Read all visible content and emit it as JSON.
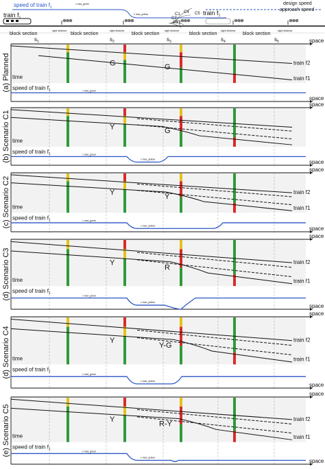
{
  "legend": {
    "speed_label": "speed of train f",
    "speed_sub": "1",
    "design_speed": "design speed",
    "approach_speed": "approach speed",
    "vmax_green": "v max_green",
    "vmax_yellow": "v max_yellow",
    "train_label": "train f",
    "train_sub": "1",
    "train_label_2": "train f",
    "train_sub_2": "2",
    "cases": [
      "C1",
      "C2",
      "C3",
      "C4",
      "C5"
    ],
    "block_section": "block section",
    "sight_distance": "sight distance",
    "sections": [
      "s",
      "s",
      "s",
      "s",
      "s"
    ],
    "section_subs": [
      "1",
      "2",
      "3",
      "4",
      "5"
    ]
  },
  "axis": {
    "space": "space",
    "time": "time",
    "speed_of_train": "speed of train f",
    "speed_sub": "1",
    "vmax_green": "v max_green",
    "vmax_yellow": "v max_yellow"
  },
  "panels": [
    {
      "label": "(a) Planned",
      "aspects": [
        "G",
        "G"
      ],
      "trains": [
        "train f2",
        "train f1"
      ],
      "speed_profile": "constant"
    },
    {
      "label": "(b) Scenario C1",
      "aspects": [
        "Y",
        "G"
      ],
      "trains": [],
      "speed_profile": "dip_to_yellow"
    },
    {
      "label": "(c) Scenario C2",
      "aspects": [
        "Y",
        "Y"
      ],
      "trains": [
        "train f2",
        "train f1"
      ],
      "speed_profile": "long_yellow"
    },
    {
      "label": "(d) Scenario C3",
      "aspects": [
        "Y",
        "R"
      ],
      "trains": [
        "train f2",
        "train f1"
      ],
      "speed_profile": "yellow_to_stop"
    },
    {
      "label": "(d) Scenario C4",
      "aspects": [
        "Y",
        "Y-G"
      ],
      "trains": [
        "train f2",
        "train f1"
      ],
      "speed_profile": "yellow_then_green"
    },
    {
      "label": "(e) Scenario C5",
      "aspects": [
        "Y",
        "R-Y"
      ],
      "trains": [
        "train f2",
        "train f1"
      ],
      "speed_profile": "yellow_then_stop_yellow"
    }
  ],
  "colors": {
    "speed_line": "#2a56c6",
    "signal_green": "#2f9a3a",
    "signal_yellow": "#e3c21a",
    "signal_red": "#d92b2b",
    "plot_bg": "#f2f2f2",
    "track": "#222222"
  }
}
